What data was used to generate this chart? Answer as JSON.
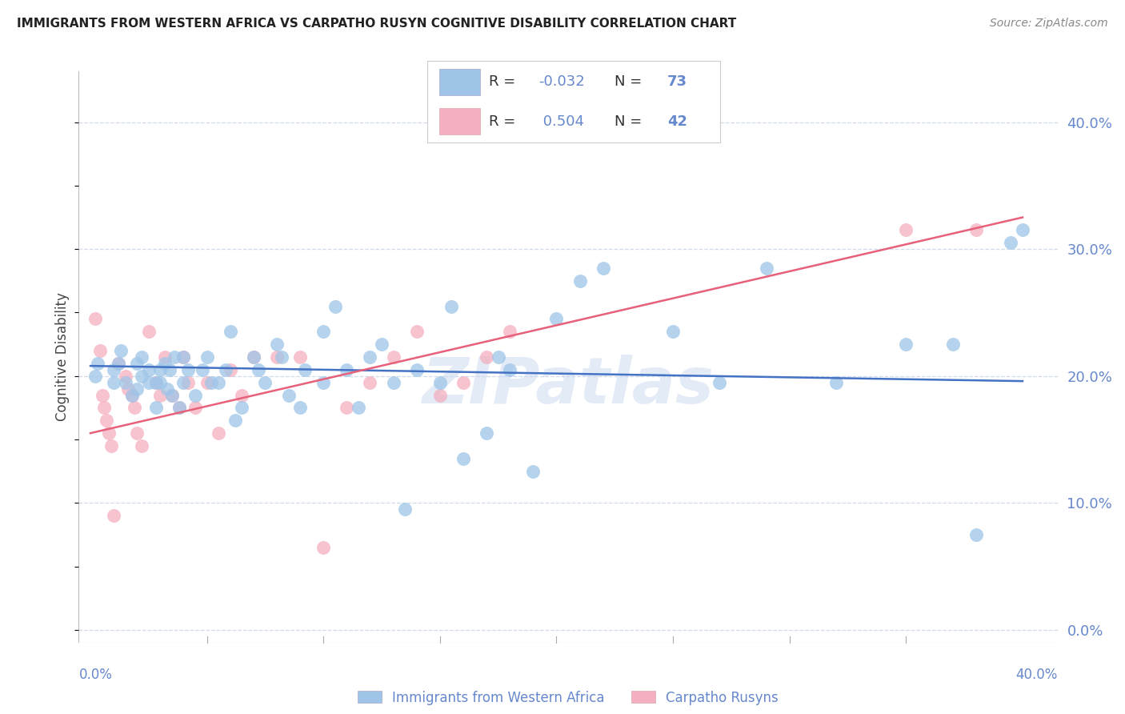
{
  "title": "IMMIGRANTS FROM WESTERN AFRICA VS CARPATHO RUSYN COGNITIVE DISABILITY CORRELATION CHART",
  "source": "Source: ZipAtlas.com",
  "ylabel": "Cognitive Disability",
  "ytick_values": [
    0.0,
    0.1,
    0.2,
    0.3,
    0.4
  ],
  "xrange": [
    -0.005,
    0.415
  ],
  "yrange": [
    -0.01,
    0.44
  ],
  "blue_R": -0.032,
  "blue_N": 73,
  "pink_R": 0.504,
  "pink_N": 42,
  "blue_scatter_color": "#9ec5e8",
  "pink_scatter_color": "#f4afc0",
  "blue_line_color": "#4472c4",
  "pink_line_color": "#e8607a",
  "legend_text_color_black": "#333333",
  "legend_value_color": "#4472c4",
  "axis_color": "#6688cc",
  "grid_color": "#d0daea",
  "title_color": "#222222",
  "watermark": "ZIPatlas",
  "blue_points_x": [
    0.002,
    0.003,
    0.01,
    0.01,
    0.012,
    0.013,
    0.015,
    0.018,
    0.02,
    0.02,
    0.022,
    0.022,
    0.025,
    0.025,
    0.028,
    0.028,
    0.03,
    0.03,
    0.032,
    0.033,
    0.034,
    0.035,
    0.036,
    0.038,
    0.04,
    0.04,
    0.042,
    0.045,
    0.048,
    0.05,
    0.052,
    0.055,
    0.058,
    0.06,
    0.062,
    0.065,
    0.07,
    0.072,
    0.075,
    0.08,
    0.082,
    0.085,
    0.09,
    0.092,
    0.1,
    0.1,
    0.105,
    0.11,
    0.115,
    0.12,
    0.125,
    0.13,
    0.135,
    0.14,
    0.15,
    0.155,
    0.16,
    0.17,
    0.175,
    0.18,
    0.19,
    0.2,
    0.21,
    0.22,
    0.25,
    0.27,
    0.29,
    0.32,
    0.35,
    0.37,
    0.38,
    0.395,
    0.4
  ],
  "blue_points_y": [
    0.2,
    0.21,
    0.195,
    0.205,
    0.21,
    0.22,
    0.195,
    0.185,
    0.19,
    0.21,
    0.2,
    0.215,
    0.195,
    0.205,
    0.195,
    0.175,
    0.195,
    0.205,
    0.21,
    0.19,
    0.205,
    0.185,
    0.215,
    0.175,
    0.195,
    0.215,
    0.205,
    0.185,
    0.205,
    0.215,
    0.195,
    0.195,
    0.205,
    0.235,
    0.165,
    0.175,
    0.215,
    0.205,
    0.195,
    0.225,
    0.215,
    0.185,
    0.175,
    0.205,
    0.195,
    0.235,
    0.255,
    0.205,
    0.175,
    0.215,
    0.225,
    0.195,
    0.095,
    0.205,
    0.195,
    0.255,
    0.135,
    0.155,
    0.215,
    0.205,
    0.125,
    0.245,
    0.275,
    0.285,
    0.235,
    0.195,
    0.285,
    0.195,
    0.225,
    0.225,
    0.075,
    0.305,
    0.315
  ],
  "pink_points_x": [
    0.002,
    0.004,
    0.005,
    0.006,
    0.007,
    0.008,
    0.009,
    0.01,
    0.012,
    0.015,
    0.016,
    0.018,
    0.019,
    0.02,
    0.022,
    0.025,
    0.028,
    0.03,
    0.032,
    0.035,
    0.038,
    0.04,
    0.042,
    0.045,
    0.05,
    0.055,
    0.06,
    0.065,
    0.07,
    0.08,
    0.09,
    0.1,
    0.11,
    0.12,
    0.13,
    0.14,
    0.15,
    0.16,
    0.17,
    0.18,
    0.35,
    0.38
  ],
  "pink_points_y": [
    0.245,
    0.22,
    0.185,
    0.175,
    0.165,
    0.155,
    0.145,
    0.09,
    0.21,
    0.2,
    0.19,
    0.185,
    0.175,
    0.155,
    0.145,
    0.235,
    0.195,
    0.185,
    0.215,
    0.185,
    0.175,
    0.215,
    0.195,
    0.175,
    0.195,
    0.155,
    0.205,
    0.185,
    0.215,
    0.215,
    0.215,
    0.065,
    0.175,
    0.195,
    0.215,
    0.235,
    0.185,
    0.195,
    0.215,
    0.235,
    0.315,
    0.315
  ],
  "legend_label_blue": "Immigrants from Western Africa",
  "legend_label_pink": "Carpatho Rusyns",
  "blue_line_endpoints_x": [
    0.0,
    0.4
  ],
  "blue_line_endpoints_y": [
    0.208,
    0.196
  ],
  "pink_line_endpoints_x": [
    0.0,
    0.4
  ],
  "pink_line_endpoints_y": [
    0.155,
    0.325
  ]
}
